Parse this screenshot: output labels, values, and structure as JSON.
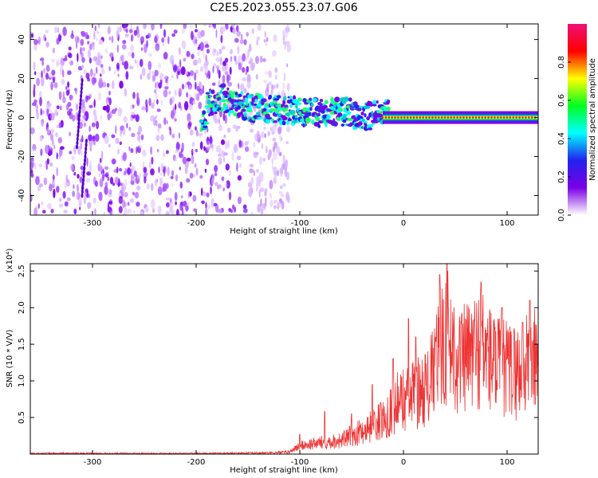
{
  "title": "C2E5.2023.055.23.07.G06",
  "colors": {
    "snr_line": "#ee3333",
    "centerline_red": "#ee2222",
    "colormap": [
      "#ffffff",
      "#7a00e6",
      "#2222ee",
      "#00ffff",
      "#00ff22",
      "#ffff00",
      "#ff0000",
      "#ee1177"
    ]
  },
  "chart_data": [
    {
      "type": "heatmap",
      "name": "spectrogram",
      "xlabel": "Height of straight line (km)",
      "ylabel": "Frequency (Hz)",
      "xlim": [
        -360,
        130
      ],
      "ylim": [
        -50,
        48
      ],
      "xticks": [
        -300,
        -200,
        -100,
        0,
        100
      ],
      "yticks": [
        -40,
        -20,
        0,
        20,
        40
      ],
      "colorbar": {
        "label": "Normalized spectral amplitude",
        "range": [
          0,
          1
        ],
        "ticks": [
          "0.0",
          "0.2",
          "0.4",
          "0.6",
          "0.8"
        ]
      },
      "features": {
        "noise_region_x": [
          -360,
          -125
        ],
        "noise_region_y": [
          -50,
          48
        ],
        "signal_track": [
          [
            -190,
            7
          ],
          [
            -175,
            10
          ],
          [
            -160,
            6
          ],
          [
            -140,
            5
          ],
          [
            -120,
            4
          ],
          [
            -100,
            3
          ],
          [
            -80,
            2
          ],
          [
            -60,
            3
          ],
          [
            -40,
            1
          ],
          [
            -20,
            1
          ],
          [
            -10,
            2
          ],
          [
            0,
            0
          ],
          [
            20,
            0
          ],
          [
            60,
            0
          ],
          [
            100,
            0
          ],
          [
            130,
            0
          ]
        ],
        "peak_track_x": [
          -20,
          130
        ],
        "peak_track_y": 0
      }
    },
    {
      "type": "line",
      "name": "snr",
      "xlabel": "Height of straight line (km)",
      "ylabel": "SNR (10 * V/V)",
      "yscale_label": "(x10⁴)",
      "xlim": [
        -360,
        130
      ],
      "ylim": [
        0,
        2.6
      ],
      "xticks": [
        -300,
        -200,
        -100,
        0,
        100
      ],
      "yticks": [
        "0.5",
        "1.0",
        "1.5",
        "2.0",
        "2.5"
      ],
      "ytick_values": [
        0.5,
        1.0,
        1.5,
        2.0,
        2.5
      ],
      "envelope": [
        [
          -360,
          0.02
        ],
        [
          -200,
          0.02
        ],
        [
          -130,
          0.03
        ],
        [
          -110,
          0.05
        ],
        [
          -100,
          0.18
        ],
        [
          -80,
          0.25
        ],
        [
          -60,
          0.3
        ],
        [
          -40,
          0.5
        ],
        [
          -20,
          0.75
        ],
        [
          -5,
          1.15
        ],
        [
          10,
          1.3
        ],
        [
          25,
          1.5
        ],
        [
          35,
          2.3
        ],
        [
          42,
          2.6
        ],
        [
          55,
          2.0
        ],
        [
          75,
          2.35
        ],
        [
          90,
          1.9
        ],
        [
          110,
          1.8
        ],
        [
          130,
          2.1
        ]
      ],
      "peaks": [
        [
          -100,
          0.27
        ],
        [
          -76,
          0.58
        ],
        [
          -50,
          0.55
        ],
        [
          -30,
          0.95
        ],
        [
          -10,
          1.3
        ],
        [
          5,
          1.85
        ],
        [
          12,
          1.6
        ],
        [
          35,
          2.45
        ],
        [
          42,
          2.6
        ],
        [
          75,
          2.35
        ],
        [
          95,
          2.0
        ],
        [
          115,
          1.8
        ],
        [
          122,
          2.1
        ]
      ]
    }
  ]
}
